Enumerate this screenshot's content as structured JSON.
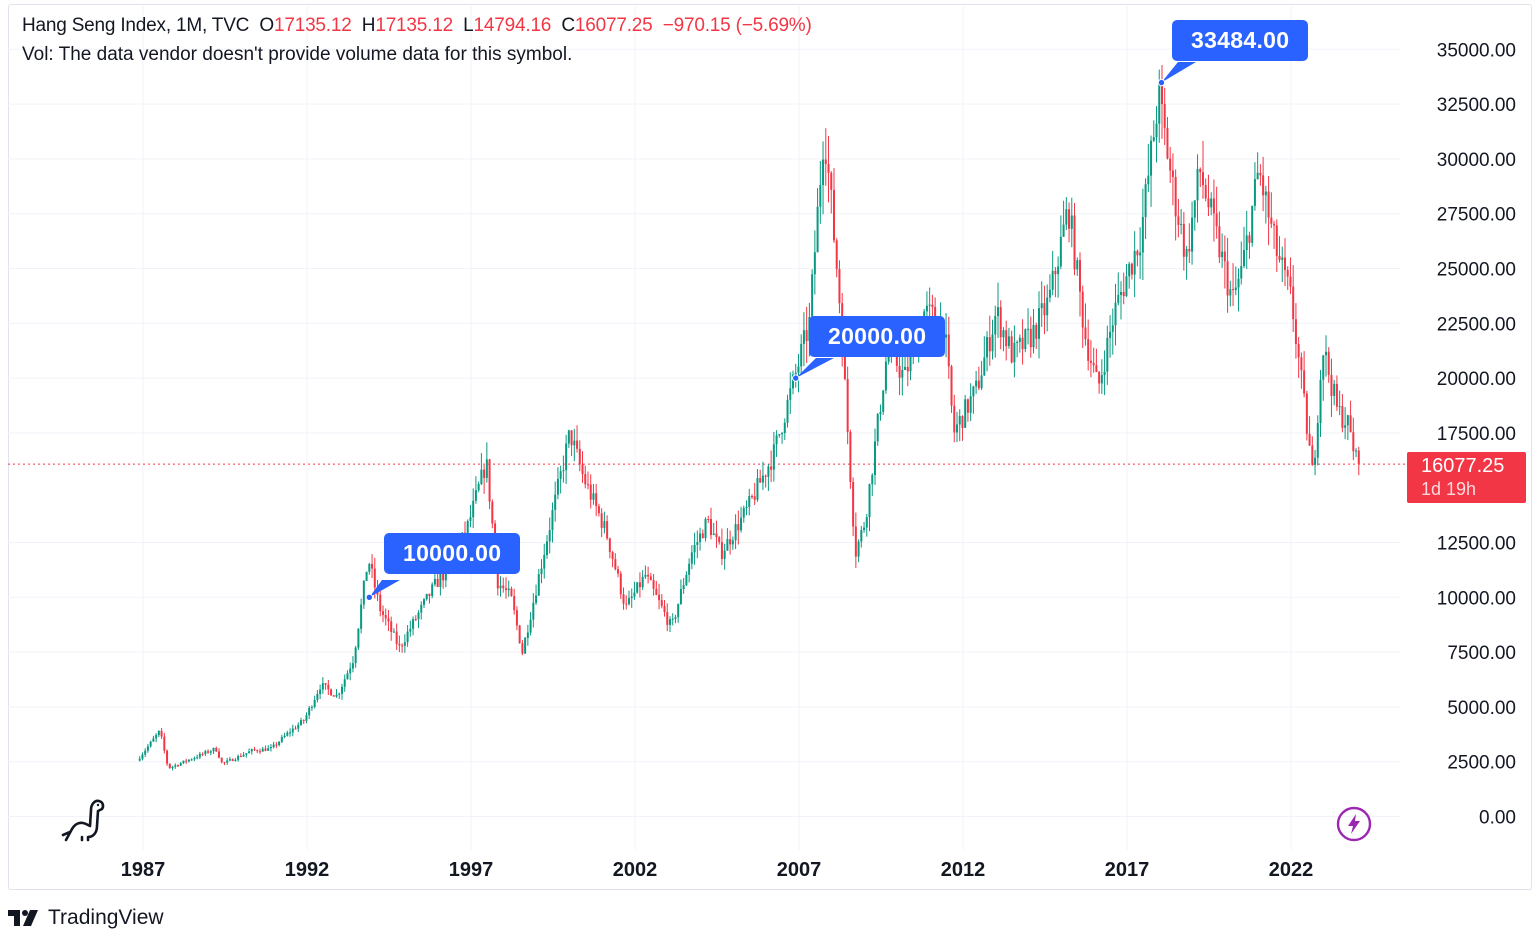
{
  "legend": {
    "title": "Hang Seng Index, 1M, TVC",
    "o_label": "O",
    "o_value": "17135.12",
    "h_label": "H",
    "h_value": "17135.12",
    "l_label": "L",
    "l_value": "14794.16",
    "c_label": "C",
    "c_value": "16077.25",
    "change": "−970.15 (−5.69%)"
  },
  "volume_note": "Vol: The data vendor doesn't provide volume data for this symbol.",
  "callouts": [
    "10000.00",
    "20000.00",
    "33484.00"
  ],
  "price_tag": {
    "price": "16077.25",
    "countdown": "1d 19h"
  },
  "brand": "TradingView",
  "icons": [
    "dinosaur-icon",
    "lightning-bolt-icon",
    "tradingview-logo-icon"
  ],
  "colors": {
    "up": "#089981",
    "down": "#f23645",
    "callout": "#2962ff",
    "price_line": "#f23645"
  },
  "chart_data": {
    "type": "candlestick",
    "title": "Hang Seng Index, 1M, TVC",
    "interval": "1M",
    "ylim": [
      -1500,
      36000
    ],
    "y_ticks": [
      "35000.00",
      "32500.00",
      "30000.00",
      "27500.00",
      "25000.00",
      "22500.00",
      "20000.00",
      "17500.00",
      "12500.00",
      "10000.00",
      "7500.00",
      "5000.00",
      "2500.00",
      "0.00"
    ],
    "x_ticks": [
      "1987",
      "1992",
      "1997",
      "2002",
      "2007",
      "2012",
      "2017",
      "2022"
    ],
    "last_close": 16077.25,
    "annotations": [
      {
        "label": "10000.00",
        "year": 1993.9,
        "value": 10000
      },
      {
        "label": "20000.00",
        "year": 2006.9,
        "value": 20000
      },
      {
        "label": "33484.00",
        "year": 2018.05,
        "value": 33484
      }
    ],
    "series_anchor_points": [
      [
        1986.9,
        2550
      ],
      [
        1987.6,
        3900
      ],
      [
        1987.85,
        2200
      ],
      [
        1988.5,
        2600
      ],
      [
        1989.3,
        3100
      ],
      [
        1989.5,
        2400
      ],
      [
        1990.4,
        3000
      ],
      [
        1991.0,
        3100
      ],
      [
        1991.5,
        3800
      ],
      [
        1992.0,
        4400
      ],
      [
        1992.5,
        6000
      ],
      [
        1993.0,
        5500
      ],
      [
        1993.5,
        7200
      ],
      [
        1993.95,
        11800
      ],
      [
        1994.3,
        9500
      ],
      [
        1994.9,
        7700
      ],
      [
        1995.5,
        9300
      ],
      [
        1996.0,
        10600
      ],
      [
        1996.5,
        11500
      ],
      [
        1997.0,
        13300
      ],
      [
        1997.55,
        16200
      ],
      [
        1997.9,
        10700
      ],
      [
        1998.3,
        10000
      ],
      [
        1998.65,
        7500
      ],
      [
        1999.3,
        12000
      ],
      [
        2000.1,
        17500
      ],
      [
        2000.5,
        15500
      ],
      [
        2001.2,
        13000
      ],
      [
        2001.8,
        9500
      ],
      [
        2002.4,
        11000
      ],
      [
        2003.2,
        8600
      ],
      [
        2003.8,
        12000
      ],
      [
        2004.3,
        13500
      ],
      [
        2004.7,
        12000
      ],
      [
        2005.5,
        14000
      ],
      [
        2006.3,
        16500
      ],
      [
        2006.95,
        20000
      ],
      [
        2007.4,
        22500
      ],
      [
        2007.85,
        31500
      ],
      [
        2008.3,
        24000
      ],
      [
        2008.8,
        12000
      ],
      [
        2009.1,
        13500
      ],
      [
        2009.8,
        21500
      ],
      [
        2010.3,
        20000
      ],
      [
        2010.9,
        23000
      ],
      [
        2011.5,
        22500
      ],
      [
        2011.8,
        17500
      ],
      [
        2012.5,
        19500
      ],
      [
        2013.1,
        23000
      ],
      [
        2013.6,
        21000
      ],
      [
        2014.2,
        22000
      ],
      [
        2014.7,
        23500
      ],
      [
        2015.3,
        27800
      ],
      [
        2015.8,
        22000
      ],
      [
        2016.2,
        19500
      ],
      [
        2016.7,
        23000
      ],
      [
        2017.5,
        26500
      ],
      [
        2018.05,
        32900
      ],
      [
        2018.5,
        28500
      ],
      [
        2018.9,
        25500
      ],
      [
        2019.3,
        29500
      ],
      [
        2019.8,
        26500
      ],
      [
        2020.3,
        23500
      ],
      [
        2020.6,
        25000
      ],
      [
        2021.1,
        29500
      ],
      [
        2021.6,
        26000
      ],
      [
        2022.1,
        23500
      ],
      [
        2022.75,
        15500
      ],
      [
        2023.05,
        21500
      ],
      [
        2023.5,
        18500
      ],
      [
        2023.8,
        18000
      ],
      [
        2024.1,
        16077
      ]
    ]
  }
}
